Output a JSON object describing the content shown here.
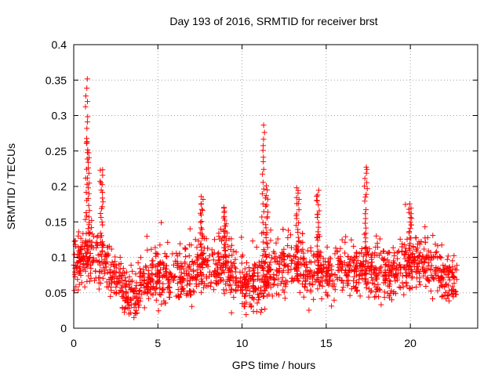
{
  "chart_data": {
    "type": "scatter",
    "title": "Day 193 of 2016, SRMTID for receiver brst",
    "xlabel": "GPS time / hours",
    "ylabel": "SRMTID / TECUs",
    "xlim": [
      0,
      24
    ],
    "ylim": [
      0,
      0.4
    ],
    "xticks": [
      0,
      5,
      10,
      15,
      20
    ],
    "xtick_labels": [
      "0",
      "5",
      "10",
      "15",
      "20"
    ],
    "yticks": [
      0,
      0.05,
      0.1,
      0.15,
      0.2,
      0.25,
      0.3,
      0.35,
      0.4
    ],
    "ytick_labels": [
      "0",
      "0.05",
      "0.1",
      "0.15",
      "0.2",
      "0.25",
      "0.3",
      "0.35",
      "0.4"
    ],
    "grid": true,
    "marker": "+",
    "color": "#ff0000",
    "data_range": [
      0.0,
      22.8
    ],
    "band_profile": {
      "x": [
        0,
        1,
        1.5,
        2,
        2.5,
        3,
        3.5,
        4,
        5,
        6,
        7,
        8,
        9,
        10,
        11,
        12,
        13,
        14,
        15,
        16,
        17,
        18,
        19,
        20,
        21,
        22,
        22.8
      ],
      "median": [
        0.09,
        0.1,
        0.1,
        0.085,
        0.075,
        0.05,
        0.045,
        0.06,
        0.07,
        0.075,
        0.075,
        0.09,
        0.09,
        0.06,
        0.06,
        0.085,
        0.09,
        0.08,
        0.08,
        0.085,
        0.085,
        0.075,
        0.075,
        0.09,
        0.09,
        0.07,
        0.065
      ]
    },
    "peaks": [
      {
        "x": 0.75,
        "y_max": 0.35
      },
      {
        "x": 0.85,
        "y_max": 0.265
      },
      {
        "x": 1.65,
        "y_max": 0.225
      },
      {
        "x": 11.25,
        "y_max": 0.285
      },
      {
        "x": 11.45,
        "y_max": 0.2
      },
      {
        "x": 13.3,
        "y_max": 0.2
      },
      {
        "x": 14.5,
        "y_max": 0.195
      },
      {
        "x": 17.35,
        "y_max": 0.23
      },
      {
        "x": 20.0,
        "y_max": 0.175
      },
      {
        "x": 9.0,
        "y_max": 0.17
      },
      {
        "x": 7.6,
        "y_max": 0.185
      }
    ],
    "point_count": 1800
  }
}
